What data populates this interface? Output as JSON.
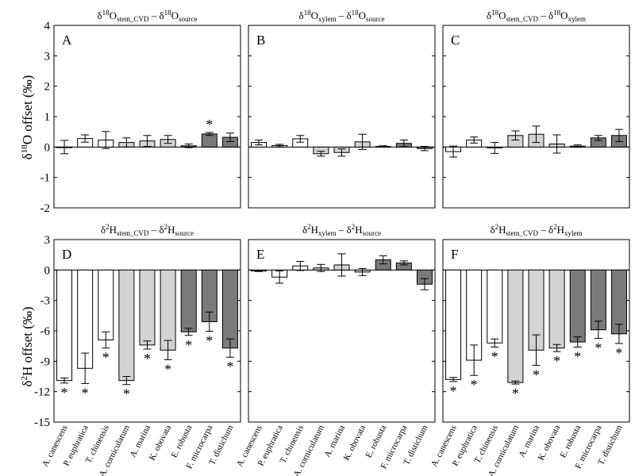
{
  "figure": {
    "y_axis_labels": {
      "top": {
        "prefix": "δ",
        "sup": "18",
        "suffix": "O offset (‰)"
      },
      "bottom": {
        "prefix": "δ",
        "sup": "2",
        "suffix": "H offset (‰)"
      }
    },
    "species": [
      "A. canescens",
      "P. euphratica",
      "T. chinensis",
      "A. corniculatum",
      "A. marina",
      "K. obovata",
      "E. robusta",
      "F. microcarpa",
      "T. distichum"
    ],
    "group_colors": [
      "#ffffff",
      "#ffffff",
      "#ffffff",
      "#d3d3d3",
      "#d3d3d3",
      "#d3d3d3",
      "#7a7a7a",
      "#7a7a7a",
      "#7a7a7a"
    ],
    "significance_marker": "*"
  },
  "chart_data": [
    {
      "type": "bar",
      "panel": "A",
      "title": [
        [
          "δ",
          ""
        ],
        [
          "18",
          "sup"
        ],
        [
          "O",
          ""
        ],
        [
          "stem_CVD",
          "sub"
        ],
        [
          " – δ",
          ""
        ],
        [
          "18",
          "sup"
        ],
        [
          "O",
          ""
        ],
        [
          "source",
          "sub"
        ]
      ],
      "ylim": [
        -2,
        4
      ],
      "yticks": [
        "-2",
        "-1",
        "0",
        "1",
        "2",
        "3",
        "4"
      ],
      "values": [
        0.0,
        0.28,
        0.23,
        0.15,
        0.2,
        0.25,
        0.04,
        0.43,
        0.32
      ],
      "errors": [
        0.22,
        0.12,
        0.28,
        0.15,
        0.18,
        0.13,
        0.06,
        0.05,
        0.14
      ],
      "significant": [
        false,
        false,
        false,
        false,
        false,
        false,
        false,
        true,
        false
      ]
    },
    {
      "type": "bar",
      "panel": "B",
      "title": [
        [
          "δ",
          ""
        ],
        [
          "18",
          "sup"
        ],
        [
          "O",
          ""
        ],
        [
          "xylem",
          "sub"
        ],
        [
          " – δ",
          ""
        ],
        [
          "18",
          "sup"
        ],
        [
          "O",
          ""
        ],
        [
          "source",
          "sub"
        ]
      ],
      "ylim": [
        -2,
        4
      ],
      "yticks": [
        "-2",
        "-1",
        "0",
        "1",
        "2",
        "3",
        "4"
      ],
      "values": [
        0.15,
        0.05,
        0.27,
        -0.22,
        -0.18,
        0.17,
        0.02,
        0.12,
        -0.05
      ],
      "errors": [
        0.08,
        0.04,
        0.11,
        0.08,
        0.12,
        0.25,
        0.02,
        0.11,
        0.07
      ],
      "significant": [
        false,
        false,
        false,
        false,
        false,
        false,
        false,
        false,
        false
      ]
    },
    {
      "type": "bar",
      "panel": "C",
      "title": [
        [
          "δ",
          ""
        ],
        [
          "18",
          "sup"
        ],
        [
          "O",
          ""
        ],
        [
          "stem_CVD",
          "sub"
        ],
        [
          " – δ",
          ""
        ],
        [
          "18",
          "sup"
        ],
        [
          "O",
          ""
        ],
        [
          "xylem",
          "sub"
        ]
      ],
      "ylim": [
        -2,
        4
      ],
      "yticks": [
        "-2",
        "-1",
        "0",
        "1",
        "2",
        "3",
        "4"
      ],
      "values": [
        -0.15,
        0.23,
        -0.03,
        0.38,
        0.42,
        0.1,
        0.03,
        0.3,
        0.38
      ],
      "errors": [
        0.18,
        0.1,
        0.18,
        0.15,
        0.27,
        0.3,
        0.04,
        0.08,
        0.2
      ],
      "significant": [
        false,
        false,
        false,
        false,
        false,
        false,
        false,
        false,
        false
      ]
    },
    {
      "type": "bar",
      "panel": "D",
      "title": [
        [
          "δ",
          ""
        ],
        [
          "2",
          "sup"
        ],
        [
          "H",
          ""
        ],
        [
          "stem_CVD",
          "sub"
        ],
        [
          " – δ",
          ""
        ],
        [
          "2",
          "sup"
        ],
        [
          "H",
          ""
        ],
        [
          "source",
          "sub"
        ]
      ],
      "ylim": [
        -15,
        3
      ],
      "yticks": [
        "-15",
        "-12",
        "-9",
        "-6",
        "-3",
        "0",
        "3"
      ],
      "values": [
        -10.9,
        -9.7,
        -6.9,
        -10.9,
        -7.4,
        -7.9,
        -6.1,
        -5.1,
        -7.7
      ],
      "errors": [
        0.25,
        1.5,
        0.8,
        0.4,
        0.4,
        0.95,
        0.35,
        0.95,
        0.9
      ],
      "significant": [
        true,
        true,
        true,
        true,
        true,
        true,
        true,
        true,
        true
      ]
    },
    {
      "type": "bar",
      "panel": "E",
      "title": [
        [
          "δ",
          ""
        ],
        [
          "2",
          "sup"
        ],
        [
          "H",
          ""
        ],
        [
          "xylem",
          "sub"
        ],
        [
          " – δ",
          ""
        ],
        [
          "2",
          "sup"
        ],
        [
          "H",
          ""
        ],
        [
          "source",
          "sub"
        ]
      ],
      "ylim": [
        -15,
        3
      ],
      "yticks": [
        "-15",
        "-12",
        "-9",
        "-6",
        "-3",
        "0",
        "3"
      ],
      "values": [
        -0.1,
        -0.7,
        0.4,
        0.2,
        0.5,
        -0.2,
        1.0,
        0.7,
        -1.4
      ],
      "errors": [
        0.05,
        0.6,
        0.45,
        0.35,
        1.1,
        0.35,
        0.4,
        0.2,
        0.55
      ],
      "significant": [
        false,
        false,
        false,
        false,
        false,
        false,
        false,
        false,
        false
      ]
    },
    {
      "type": "bar",
      "panel": "F",
      "title": [
        [
          "δ",
          ""
        ],
        [
          "2",
          "sup"
        ],
        [
          "H",
          ""
        ],
        [
          "stem_CVD",
          "sub"
        ],
        [
          " – δ",
          ""
        ],
        [
          "2",
          "sup"
        ],
        [
          "H",
          ""
        ],
        [
          "xylem",
          "sub"
        ]
      ],
      "ylim": [
        -15,
        3
      ],
      "yticks": [
        "-15",
        "-12",
        "-9",
        "-6",
        "-3",
        "0",
        "3"
      ],
      "values": [
        -10.8,
        -8.9,
        -7.2,
        -11.1,
        -7.9,
        -7.7,
        -7.1,
        -5.9,
        -6.3
      ],
      "errors": [
        0.2,
        1.5,
        0.4,
        0.15,
        1.5,
        0.35,
        0.5,
        0.85,
        0.95
      ],
      "significant": [
        true,
        true,
        true,
        true,
        true,
        true,
        true,
        true,
        true
      ]
    }
  ]
}
